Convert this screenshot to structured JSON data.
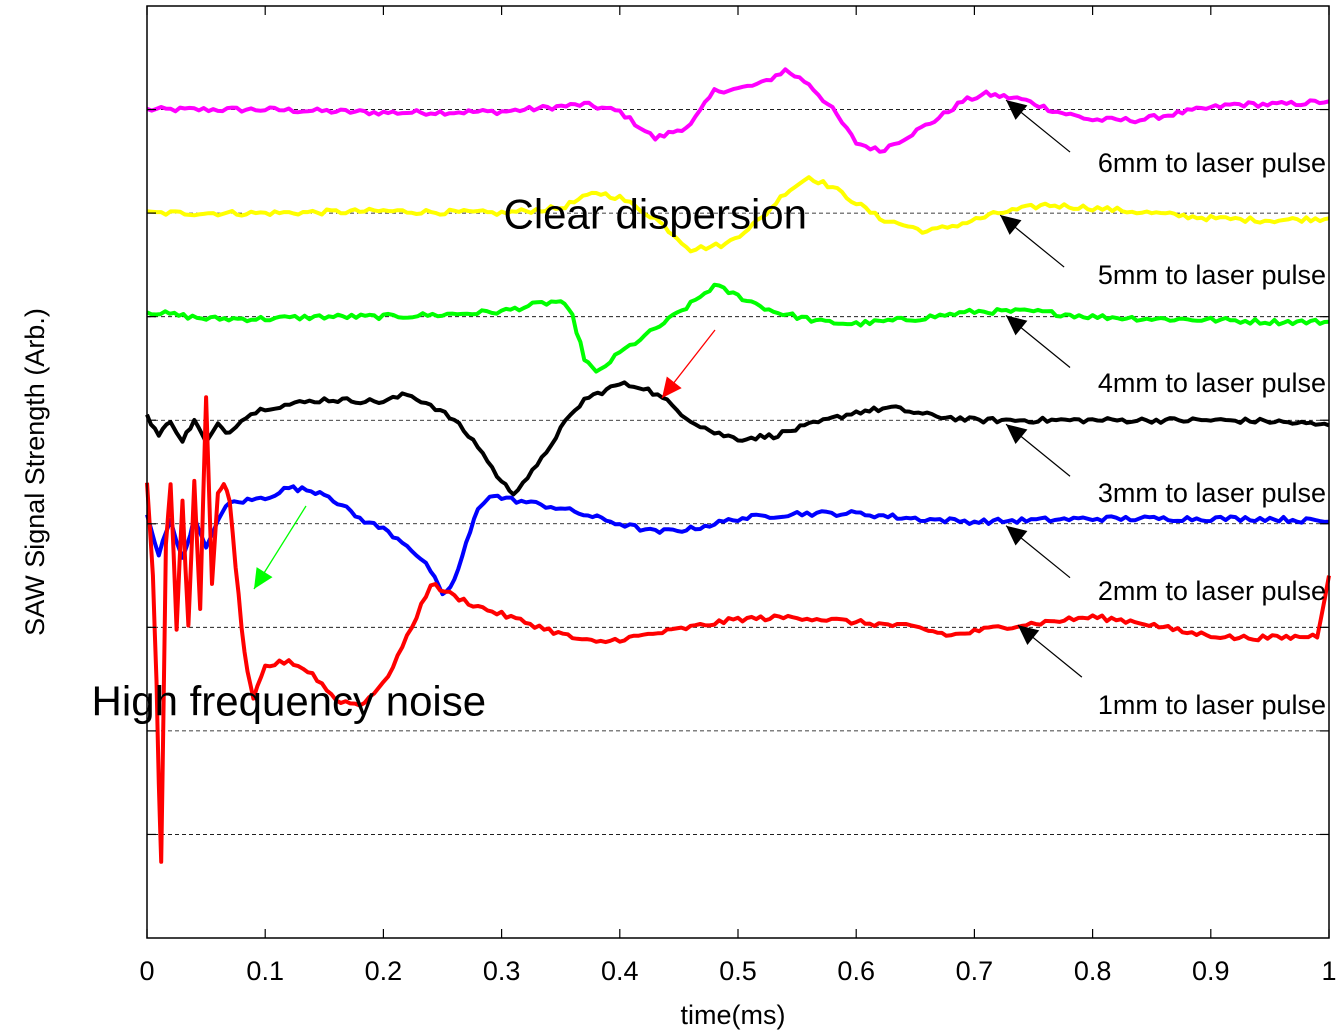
{
  "chart_data": {
    "type": "line",
    "title": "",
    "xlabel": "time(ms)",
    "ylabel": "SAW Signal Strength (Arb.)",
    "xlim": [
      0,
      1
    ],
    "ylim": [
      0,
      9
    ],
    "xticks": [
      0,
      0.1,
      0.2,
      0.3,
      0.4,
      0.5,
      0.6,
      0.7,
      0.8,
      0.9,
      1
    ],
    "xtick_labels": [
      "0",
      "0.1",
      "0.2",
      "0.3",
      "0.4",
      "0.5",
      "0.6",
      "0.7",
      "0.8",
      "0.9",
      "1"
    ],
    "yticks": [
      1,
      2,
      3,
      4,
      5,
      6,
      7,
      8
    ],
    "y_gridlines": "dashed",
    "series": [
      {
        "name": "6mm to laser pulse",
        "color": "#ff00ff",
        "points": [
          [
            0,
            8.0
          ],
          [
            0.1,
            8.0
          ],
          [
            0.2,
            7.97
          ],
          [
            0.3,
            7.98
          ],
          [
            0.37,
            8.05
          ],
          [
            0.4,
            7.98
          ],
          [
            0.43,
            7.72
          ],
          [
            0.46,
            7.85
          ],
          [
            0.48,
            8.18
          ],
          [
            0.5,
            8.2
          ],
          [
            0.52,
            8.25
          ],
          [
            0.54,
            8.38
          ],
          [
            0.56,
            8.25
          ],
          [
            0.58,
            8.0
          ],
          [
            0.6,
            7.68
          ],
          [
            0.62,
            7.6
          ],
          [
            0.64,
            7.72
          ],
          [
            0.67,
            7.92
          ],
          [
            0.69,
            8.08
          ],
          [
            0.71,
            8.15
          ],
          [
            0.74,
            8.1
          ],
          [
            0.77,
            7.98
          ],
          [
            0.8,
            7.9
          ],
          [
            0.84,
            7.9
          ],
          [
            0.88,
            7.98
          ],
          [
            0.92,
            8.05
          ],
          [
            0.96,
            8.05
          ],
          [
            1.0,
            8.08
          ]
        ]
      },
      {
        "name": "5mm to laser pulse",
        "color": "#ffff00",
        "points": [
          [
            0,
            7.0
          ],
          [
            0.1,
            7.0
          ],
          [
            0.2,
            7.02
          ],
          [
            0.3,
            7.0
          ],
          [
            0.35,
            7.05
          ],
          [
            0.38,
            7.2
          ],
          [
            0.4,
            7.15
          ],
          [
            0.43,
            6.95
          ],
          [
            0.46,
            6.65
          ],
          [
            0.49,
            6.7
          ],
          [
            0.52,
            6.95
          ],
          [
            0.54,
            7.2
          ],
          [
            0.56,
            7.35
          ],
          [
            0.58,
            7.25
          ],
          [
            0.62,
            6.95
          ],
          [
            0.66,
            6.82
          ],
          [
            0.69,
            6.9
          ],
          [
            0.72,
            7.0
          ],
          [
            0.76,
            7.08
          ],
          [
            0.8,
            7.05
          ],
          [
            0.85,
            7.0
          ],
          [
            0.9,
            6.95
          ],
          [
            0.95,
            6.93
          ],
          [
            1.0,
            6.95
          ]
        ]
      },
      {
        "name": "4mm to laser pulse",
        "color": "#00ff00",
        "points": [
          [
            0,
            6.05
          ],
          [
            0.05,
            5.98
          ],
          [
            0.1,
            5.98
          ],
          [
            0.15,
            6.0
          ],
          [
            0.2,
            6.0
          ],
          [
            0.25,
            6.02
          ],
          [
            0.3,
            6.05
          ],
          [
            0.33,
            6.12
          ],
          [
            0.35,
            6.15
          ],
          [
            0.36,
            6.0
          ],
          [
            0.37,
            5.6
          ],
          [
            0.38,
            5.45
          ],
          [
            0.4,
            5.65
          ],
          [
            0.43,
            5.88
          ],
          [
            0.46,
            6.12
          ],
          [
            0.48,
            6.3
          ],
          [
            0.5,
            6.2
          ],
          [
            0.53,
            6.05
          ],
          [
            0.57,
            5.95
          ],
          [
            0.6,
            5.93
          ],
          [
            0.65,
            5.98
          ],
          [
            0.7,
            6.05
          ],
          [
            0.75,
            6.05
          ],
          [
            0.8,
            6.0
          ],
          [
            0.85,
            5.98
          ],
          [
            0.9,
            5.97
          ],
          [
            0.95,
            5.95
          ],
          [
            1.0,
            5.95
          ]
        ]
      },
      {
        "name": "3mm to laser pulse",
        "color": "#000000",
        "points": [
          [
            0,
            5.05
          ],
          [
            0.01,
            4.85
          ],
          [
            0.02,
            5.0
          ],
          [
            0.03,
            4.8
          ],
          [
            0.04,
            5.0
          ],
          [
            0.05,
            4.78
          ],
          [
            0.06,
            4.95
          ],
          [
            0.07,
            4.88
          ],
          [
            0.08,
            5.02
          ],
          [
            0.1,
            5.12
          ],
          [
            0.15,
            5.2
          ],
          [
            0.2,
            5.18
          ],
          [
            0.22,
            5.25
          ],
          [
            0.24,
            5.15
          ],
          [
            0.26,
            5.0
          ],
          [
            0.28,
            4.75
          ],
          [
            0.3,
            4.4
          ],
          [
            0.31,
            4.3
          ],
          [
            0.33,
            4.55
          ],
          [
            0.35,
            4.92
          ],
          [
            0.37,
            5.2
          ],
          [
            0.4,
            5.35
          ],
          [
            0.42,
            5.32
          ],
          [
            0.44,
            5.18
          ],
          [
            0.46,
            5.0
          ],
          [
            0.48,
            4.88
          ],
          [
            0.5,
            4.82
          ],
          [
            0.53,
            4.85
          ],
          [
            0.56,
            4.95
          ],
          [
            0.6,
            5.08
          ],
          [
            0.63,
            5.12
          ],
          [
            0.66,
            5.05
          ],
          [
            0.7,
            5.0
          ],
          [
            0.75,
            5.0
          ],
          [
            0.8,
            5.0
          ],
          [
            0.85,
            5.0
          ],
          [
            0.9,
            5.0
          ],
          [
            0.95,
            4.99
          ],
          [
            1.0,
            4.95
          ]
        ]
      },
      {
        "name": "2mm to laser pulse",
        "color": "#0000ff",
        "points": [
          [
            0,
            4.1
          ],
          [
            0.01,
            3.7
          ],
          [
            0.02,
            4.05
          ],
          [
            0.03,
            3.65
          ],
          [
            0.04,
            4.05
          ],
          [
            0.05,
            3.75
          ],
          [
            0.06,
            4.05
          ],
          [
            0.07,
            4.2
          ],
          [
            0.1,
            4.25
          ],
          [
            0.12,
            4.35
          ],
          [
            0.15,
            4.3
          ],
          [
            0.18,
            4.05
          ],
          [
            0.2,
            3.95
          ],
          [
            0.22,
            3.8
          ],
          [
            0.24,
            3.55
          ],
          [
            0.25,
            3.3
          ],
          [
            0.26,
            3.45
          ],
          [
            0.27,
            3.8
          ],
          [
            0.28,
            4.15
          ],
          [
            0.29,
            4.28
          ],
          [
            0.3,
            4.25
          ],
          [
            0.35,
            4.15
          ],
          [
            0.4,
            4.0
          ],
          [
            0.43,
            3.92
          ],
          [
            0.46,
            3.95
          ],
          [
            0.5,
            4.05
          ],
          [
            0.55,
            4.1
          ],
          [
            0.6,
            4.1
          ],
          [
            0.65,
            4.05
          ],
          [
            0.7,
            4.02
          ],
          [
            0.8,
            4.05
          ],
          [
            0.9,
            4.05
          ],
          [
            0.95,
            4.05
          ],
          [
            1.0,
            4.02
          ]
        ]
      },
      {
        "name": "1mm to laser pulse",
        "color": "#ff0000",
        "points": [
          [
            0,
            4.4
          ],
          [
            0.005,
            3.5
          ],
          [
            0.008,
            2.5
          ],
          [
            0.01,
            1.5
          ],
          [
            0.012,
            0.75
          ],
          [
            0.014,
            2.2
          ],
          [
            0.016,
            3.8
          ],
          [
            0.02,
            4.4
          ],
          [
            0.025,
            3.0
          ],
          [
            0.03,
            4.2
          ],
          [
            0.035,
            3.0
          ],
          [
            0.04,
            4.4
          ],
          [
            0.045,
            3.2
          ],
          [
            0.05,
            5.2
          ],
          [
            0.055,
            3.4
          ],
          [
            0.06,
            4.3
          ],
          [
            0.065,
            4.4
          ],
          [
            0.07,
            4.2
          ],
          [
            0.075,
            3.6
          ],
          [
            0.08,
            3.0
          ],
          [
            0.085,
            2.55
          ],
          [
            0.09,
            2.3
          ],
          [
            0.1,
            2.62
          ],
          [
            0.12,
            2.68
          ],
          [
            0.14,
            2.55
          ],
          [
            0.16,
            2.3
          ],
          [
            0.18,
            2.25
          ],
          [
            0.2,
            2.45
          ],
          [
            0.22,
            2.9
          ],
          [
            0.24,
            3.42
          ],
          [
            0.26,
            3.3
          ],
          [
            0.28,
            3.2
          ],
          [
            0.32,
            3.05
          ],
          [
            0.36,
            2.9
          ],
          [
            0.38,
            2.85
          ],
          [
            0.42,
            2.92
          ],
          [
            0.46,
            3.0
          ],
          [
            0.5,
            3.08
          ],
          [
            0.55,
            3.1
          ],
          [
            0.6,
            3.05
          ],
          [
            0.65,
            3.0
          ],
          [
            0.68,
            2.92
          ],
          [
            0.72,
            3.0
          ],
          [
            0.76,
            3.05
          ],
          [
            0.8,
            3.1
          ],
          [
            0.84,
            3.05
          ],
          [
            0.88,
            2.95
          ],
          [
            0.92,
            2.9
          ],
          [
            0.96,
            2.9
          ],
          [
            0.99,
            2.92
          ],
          [
            1.0,
            3.5
          ]
        ]
      }
    ],
    "annotations": [
      {
        "text": "Clear dispersion",
        "x": 0.43,
        "y": 6.85
      },
      {
        "text": "High frequency noise",
        "x": 0.12,
        "y": 2.15
      }
    ]
  }
}
